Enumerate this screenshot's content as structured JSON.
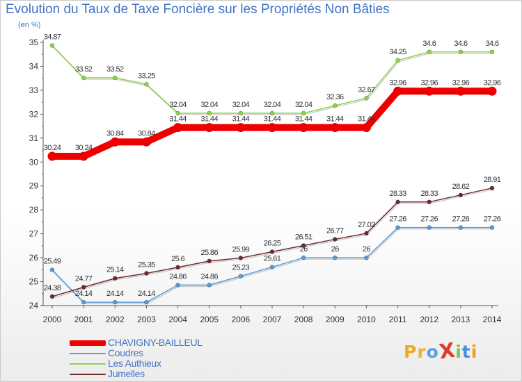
{
  "title": "Evolution du Taux de Taxe Foncière sur les Propriétés Non Bâties",
  "unit_label": "(en %)",
  "logo": {
    "text": "ProXiti",
    "letter_colors": [
      "#f0a82a",
      "#e8b830",
      "#5aa0dc",
      "#e03a2a",
      "#88c040",
      "#4a90d8",
      "#e8a020"
    ]
  },
  "chart_data": {
    "type": "line",
    "x": [
      2000,
      2001,
      2002,
      2003,
      2004,
      2005,
      2006,
      2007,
      2008,
      2009,
      2010,
      2011,
      2012,
      2013,
      2014
    ],
    "ylim": [
      24,
      35
    ],
    "yticks": [
      24,
      25,
      26,
      27,
      28,
      29,
      30,
      31,
      32,
      33,
      34,
      35
    ],
    "grid": false,
    "legend_position": "bottom-left",
    "series": [
      {
        "name": "CHAVIGNY-BAILLEUL",
        "color": "#ee0000",
        "values": [
          30.24,
          30.24,
          30.84,
          30.84,
          31.44,
          31.44,
          31.44,
          31.44,
          31.44,
          31.44,
          31.44,
          32.96,
          32.96,
          32.96,
          32.96
        ],
        "labels": [
          "30.24",
          "30.24",
          "30.84",
          "30.84",
          "31.44",
          "31.44",
          "31.44",
          "31.44",
          "31.44",
          "31.44",
          "31.44",
          "32.96",
          "32.96",
          "32.96",
          "32.96"
        ]
      },
      {
        "name": "Coudres",
        "color": "#5b9bd5",
        "values": [
          25.49,
          24.14,
          24.14,
          24.14,
          24.86,
          24.86,
          25.23,
          25.61,
          26,
          26,
          26,
          27.26,
          27.26,
          27.26,
          27.26
        ],
        "labels": [
          "25.49",
          "24.14",
          "24.14",
          "24.14",
          "24.86",
          "24.86",
          "25.23",
          "25.61",
          "26",
          "26",
          "26",
          "27.26",
          "27.26",
          "27.26",
          "27.26"
        ]
      },
      {
        "name": "Les Authieux",
        "color": "#8ed24c",
        "values": [
          34.87,
          33.52,
          33.52,
          33.25,
          32.04,
          32.04,
          32.04,
          32.04,
          32.04,
          32.36,
          32.67,
          34.25,
          34.6,
          34.6,
          34.6
        ],
        "labels": [
          "34.87",
          "33.52",
          "33.52",
          "33.25",
          "32.04",
          "32.04",
          "32.04",
          "32.04",
          "32.04",
          "32.36",
          "32.67",
          "34.25",
          "34.6",
          "34.6",
          "34.6"
        ]
      },
      {
        "name": "Jumelles",
        "color": "#6e2b2b",
        "values": [
          24.38,
          24.77,
          25.14,
          25.35,
          25.6,
          25.86,
          25.99,
          26.25,
          26.51,
          26.77,
          27.02,
          28.33,
          28.33,
          28.62,
          28.91
        ],
        "labels": [
          "24.38",
          "24.77",
          "25.14",
          "25.35",
          "25.6",
          "25.86",
          "25.99",
          "26.25",
          "26.51",
          "26.77",
          "27.02",
          "28.33",
          "28.33",
          "28.62",
          "28.91"
        ]
      }
    ]
  }
}
